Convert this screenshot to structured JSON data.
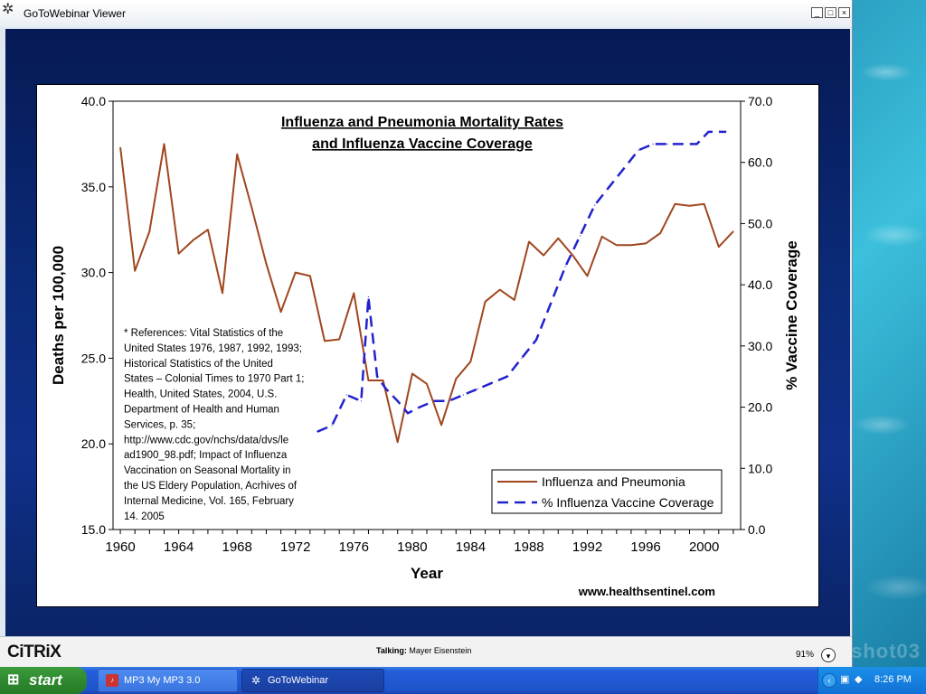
{
  "window": {
    "title": "GoToWebinar Viewer",
    "controls": {
      "minimize": "_",
      "maximize": "□",
      "close": "×"
    }
  },
  "status": {
    "logo": "CiTRiX",
    "talking_label": "Talking:",
    "talking_name": "Mayer Eisenstein",
    "zoom": "91%"
  },
  "desktop": {
    "watermark": "shot03"
  },
  "taskbar": {
    "start_label": "start",
    "tasks": [
      {
        "label": "MP3 My MP3 3.0",
        "icon": "mp3-app-icon"
      },
      {
        "label": "GoToWebinar",
        "icon": "gotowebinar-icon"
      }
    ],
    "clock": "8:26 PM"
  },
  "slide": {
    "website": "www.healthsentinel.com"
  },
  "chart_data": {
    "type": "line",
    "title": [
      "Influenza and Pneumonia Mortality Rates",
      "and Influenza Vaccine Coverage"
    ],
    "xlabel": "Year",
    "ylabel": "Deaths per 100,000",
    "y2label": "% Vaccine Coverage",
    "xlim": [
      1959.5,
      2002.5
    ],
    "ylim": [
      15,
      40
    ],
    "y2lim": [
      0,
      70
    ],
    "xticks": [
      "1960",
      "1964",
      "1968",
      "1972",
      "1976",
      "1980",
      "1984",
      "1988",
      "1992",
      "1996",
      "2000"
    ],
    "yticks": [
      "15.0",
      "20.0",
      "25.0",
      "30.0",
      "35.0",
      "40.0"
    ],
    "y2ticks": [
      "0.0",
      "10.0",
      "20.0",
      "30.0",
      "40.0",
      "50.0",
      "60.0",
      "70.0"
    ],
    "legend_position": "bottom-right",
    "colors": {
      "influenza": "#a0461e",
      "vaccine": "#2222cc"
    },
    "series": [
      {
        "name": "Influenza and Pneumonia",
        "axis": "left",
        "x": [
          1960,
          1961,
          1962,
          1963,
          1964,
          1965,
          1966,
          1967,
          1968,
          1969,
          1970,
          1971,
          1972,
          1973,
          1974,
          1975,
          1976,
          1977,
          1978,
          1979,
          1980,
          1981,
          1982,
          1983,
          1984,
          1985,
          1986,
          1987,
          1988,
          1989,
          1990,
          1991,
          1992,
          1993,
          1994,
          1995,
          1996,
          1997,
          1998,
          1999,
          2000,
          2001,
          2002
        ],
        "values": [
          37.3,
          30.1,
          32.4,
          37.5,
          31.1,
          31.9,
          32.5,
          28.8,
          36.9,
          33.8,
          30.5,
          27.7,
          30.0,
          29.8,
          26.0,
          26.1,
          28.8,
          23.7,
          23.7,
          20.1,
          24.1,
          23.5,
          21.1,
          23.8,
          24.8,
          28.3,
          29.0,
          28.4,
          31.8,
          31.0,
          32.0,
          31.0,
          29.8,
          32.1,
          31.6,
          31.6,
          31.7,
          32.3,
          34.0,
          33.9,
          34.0,
          31.5,
          32.4
        ]
      },
      {
        "name": "% Influenza Vaccine Coverage",
        "axis": "right",
        "x": [
          1973.5,
          1974.5,
          1975.5,
          1976.5,
          1977,
          1977.6,
          1978.2,
          1979,
          1979.7,
          1980.5,
          1981.5,
          1982.5,
          1983.5,
          1984.5,
          1985.5,
          1986.5,
          1987.5,
          1988.5,
          1989.5,
          1990.5,
          1991.5,
          1992.5,
          1993.5,
          1994.5,
          1995.5,
          1996.5,
          1997.5,
          1998.5,
          1999.5,
          2000.3,
          2001.5
        ],
        "values": [
          16,
          17,
          22,
          21,
          38,
          25,
          23,
          21,
          19,
          20,
          21,
          21,
          22,
          23,
          24,
          25,
          28,
          31,
          37,
          43,
          48,
          53,
          56,
          59,
          62,
          63,
          63,
          63,
          63,
          65,
          65
        ]
      }
    ],
    "annotation": "* References: Vital Statistics of the United States 1976, 1987, 1992, 1993; Historical Statistics of the United States – Colonial Times to 1970 Part 1; Health, United States, 2004, U.S. Department of Health and Human Services, p. 35; http://www.cdc.gov/nchs/data/dvs/lead1900_98.pdf; Impact of Influenza Vaccination on Seasonal Mortality in the US Eldery Population, Acrhives of Internal Medicine, Vol. 165, February 14. 2005"
  }
}
